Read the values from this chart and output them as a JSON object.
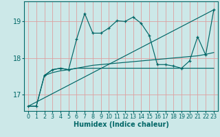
{
  "xlabel": "Humidex (Indice chaleur)",
  "bg_color": "#cce8e8",
  "grid_color": "#dda0a0",
  "line_color": "#006666",
  "xlim": [
    -0.5,
    23.5
  ],
  "ylim": [
    16.55,
    19.55
  ],
  "yticks": [
    17,
    18,
    19
  ],
  "xticks": [
    0,
    1,
    2,
    3,
    4,
    5,
    6,
    7,
    8,
    9,
    10,
    11,
    12,
    13,
    14,
    15,
    16,
    17,
    18,
    19,
    20,
    21,
    22,
    23
  ],
  "line_main_x": [
    0,
    1,
    2,
    3,
    4,
    5,
    6,
    7,
    8,
    9,
    10,
    11,
    12,
    13,
    14,
    15,
    16,
    17,
    18,
    19,
    20,
    21,
    22,
    23
  ],
  "line_main_y": [
    16.68,
    16.68,
    17.52,
    17.68,
    17.72,
    17.68,
    18.52,
    19.22,
    18.68,
    18.68,
    18.82,
    19.02,
    19.0,
    19.12,
    18.95,
    18.62,
    17.82,
    17.82,
    17.78,
    17.72,
    17.92,
    18.58,
    18.08,
    19.32
  ],
  "line2_x": [
    0,
    1,
    2,
    3,
    4,
    5,
    6,
    7,
    8,
    9,
    10,
    11,
    12,
    13,
    14,
    15,
    16,
    17,
    18,
    19,
    20,
    21,
    22,
    23
  ],
  "line2_y": [
    16.68,
    16.68,
    17.52,
    17.68,
    17.72,
    17.68,
    17.72,
    17.72,
    17.72,
    17.72,
    17.72,
    17.72,
    17.72,
    17.72,
    17.72,
    17.72,
    17.72,
    17.72,
    17.72,
    17.72,
    17.72,
    17.72,
    17.72,
    17.72
  ],
  "line3_x": [
    2,
    3,
    4,
    5,
    6,
    7,
    8,
    9,
    10,
    11,
    12,
    13,
    14,
    15,
    16,
    17,
    18,
    19,
    20,
    21,
    22,
    23
  ],
  "line3_y": [
    17.52,
    17.6,
    17.65,
    17.68,
    17.72,
    17.76,
    17.8,
    17.82,
    17.84,
    17.86,
    17.88,
    17.9,
    17.92,
    17.94,
    17.96,
    17.98,
    18.0,
    18.02,
    18.04,
    18.06,
    18.1,
    18.15
  ],
  "line4_x": [
    0,
    23
  ],
  "line4_y": [
    16.68,
    19.32
  ]
}
